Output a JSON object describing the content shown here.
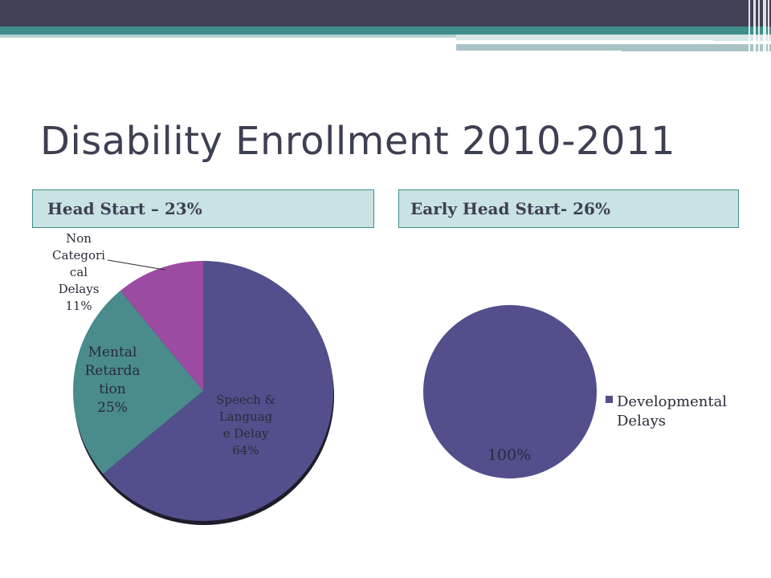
{
  "slide": {
    "title": "Disability Enrollment 2010-2011",
    "left_header": "Head Start – 23%",
    "right_header": "Early Head Start- 26%"
  },
  "colors": {
    "top_band": "#414255",
    "teal": "#3e8e8c",
    "header_fill": "#c9e2e3",
    "title_text": "#3d3f52",
    "slice_speech": "#524f8c",
    "slice_mental": "#4a8b8c",
    "slice_noncat": "#9b4ba2",
    "slice_dev": "#524f8c"
  },
  "chart_data": [
    {
      "type": "pie",
      "title": "",
      "slices": [
        {
          "label_lines": [
            "Speech &",
            "Languag",
            "e Delay",
            "64%"
          ],
          "value": 64,
          "color": "#524f8c"
        },
        {
          "label_lines": [
            "Mental",
            "Retarda",
            "tion",
            "25%"
          ],
          "value": 25,
          "color": "#4a8b8c"
        },
        {
          "label_lines": [
            "Non",
            "Categori",
            "cal",
            "Delays",
            "11%"
          ],
          "value": 11,
          "color": "#9b4ba2"
        }
      ],
      "legend": null
    },
    {
      "type": "pie",
      "title": "",
      "slices": [
        {
          "label_lines": [
            "100%"
          ],
          "value": 100,
          "color": "#524f8c",
          "legend_name": "Developmental Delays"
        }
      ],
      "legend": {
        "placement": "right",
        "lines": [
          "Developmental",
          "Delays"
        ]
      }
    }
  ]
}
